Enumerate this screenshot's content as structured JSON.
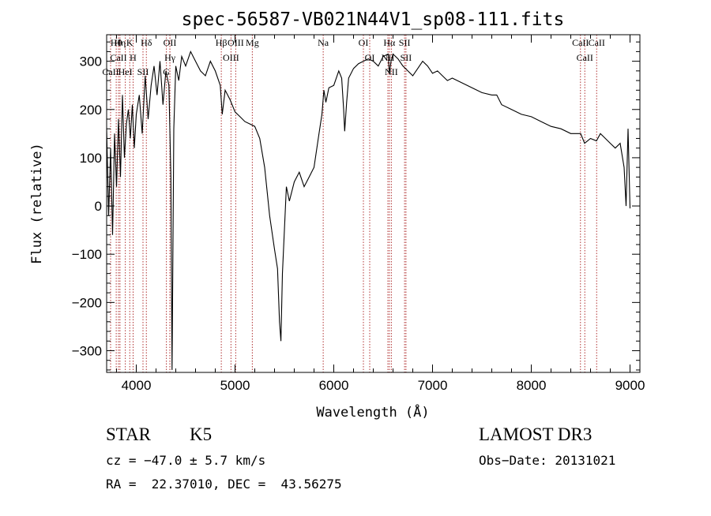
{
  "chart_data": {
    "type": "line",
    "title": "spec-56587-VB021N44V1_sp08-111.fits",
    "xlabel": "Wavelength (Å)",
    "ylabel": "Flux (relative)",
    "xlim": [
      3700,
      9100
    ],
    "ylim": [
      -345,
      355
    ],
    "x_ticks": [
      4000,
      5000,
      6000,
      7000,
      8000,
      9000
    ],
    "x_tick_labels": [
      "4000",
      "5000",
      "6000",
      "7000",
      "8000",
      "9000"
    ],
    "y_ticks": [
      -300,
      -200,
      -100,
      0,
      100,
      200,
      300
    ],
    "y_tick_labels": [
      "−300",
      "−200",
      "−100",
      "0",
      "100",
      "200",
      "300"
    ],
    "spectrum_color": "#000000",
    "line_color": "#b03030",
    "series": [
      {
        "name": "flux",
        "x": [
          3700,
          3720,
          3740,
          3760,
          3780,
          3800,
          3820,
          3840,
          3860,
          3880,
          3900,
          3920,
          3940,
          3960,
          3980,
          4000,
          4030,
          4060,
          4090,
          4120,
          4150,
          4180,
          4210,
          4240,
          4270,
          4300,
          4330,
          4350,
          4362,
          4380,
          4400,
          4430,
          4460,
          4500,
          4550,
          4600,
          4650,
          4700,
          4750,
          4800,
          4850,
          4870,
          4900,
          4950,
          5000,
          5050,
          5100,
          5150,
          5200,
          5250,
          5300,
          5350,
          5400,
          5430,
          5450,
          5465,
          5480,
          5500,
          5520,
          5550,
          5600,
          5650,
          5700,
          5750,
          5800,
          5850,
          5880,
          5900,
          5920,
          5950,
          6000,
          6050,
          6080,
          6100,
          6110,
          6130,
          6150,
          6200,
          6250,
          6300,
          6350,
          6400,
          6450,
          6500,
          6550,
          6563,
          6580,
          6600,
          6650,
          6700,
          6750,
          6800,
          6850,
          6900,
          6950,
          7000,
          7050,
          7100,
          7150,
          7200,
          7300,
          7400,
          7500,
          7600,
          7650,
          7700,
          7800,
          7900,
          8000,
          8100,
          8200,
          8300,
          8400,
          8500,
          8540,
          8600,
          8660,
          8700,
          8750,
          8800,
          8850,
          8900,
          8940,
          8960,
          8980,
          9000
        ],
        "y": [
          160,
          -20,
          120,
          -60,
          150,
          40,
          180,
          60,
          230,
          100,
          170,
          200,
          140,
          210,
          120,
          190,
          230,
          150,
          270,
          180,
          250,
          290,
          230,
          300,
          210,
          280,
          250,
          60,
          -340,
          160,
          290,
          260,
          310,
          290,
          320,
          300,
          280,
          270,
          300,
          280,
          250,
          190,
          240,
          220,
          195,
          185,
          175,
          170,
          165,
          140,
          80,
          -20,
          -90,
          -130,
          -240,
          -280,
          -140,
          -50,
          40,
          10,
          50,
          70,
          40,
          60,
          80,
          150,
          190,
          240,
          215,
          245,
          250,
          280,
          265,
          200,
          155,
          215,
          265,
          285,
          295,
          300,
          305,
          300,
          290,
          310,
          315,
          275,
          300,
          315,
          305,
          290,
          280,
          270,
          285,
          300,
          290,
          275,
          280,
          270,
          260,
          265,
          255,
          245,
          235,
          230,
          230,
          210,
          200,
          190,
          185,
          175,
          165,
          160,
          150,
          150,
          130,
          140,
          135,
          150,
          140,
          130,
          120,
          130,
          80,
          0,
          160,
          -5
        ]
      }
    ],
    "lines": [
      {
        "label": "Hθ",
        "x": 3797
      },
      {
        "label": "CaII",
        "x": 3820
      },
      {
        "label": "CaII",
        "x": 3740
      },
      {
        "label": "K",
        "x": 3934
      },
      {
        "label": "H",
        "x": 3968
      },
      {
        "label": "HeI",
        "x": 3889
      },
      {
        "label": "Hη",
        "x": 3835
      },
      {
        "label": "Hδ",
        "x": 4102
      },
      {
        "label": "SII",
        "x": 4068
      },
      {
        "label": "OII",
        "x": 4340
      },
      {
        "label": "Hγ",
        "x": 4341
      },
      {
        "label": "G",
        "x": 4305
      },
      {
        "label": "Hβ",
        "x": 4861
      },
      {
        "label": "OIII",
        "x": 4959
      },
      {
        "label": "OIII",
        "x": 5007
      },
      {
        "label": "Mg",
        "x": 5175
      },
      {
        "label": "Na",
        "x": 5893
      },
      {
        "label": "OI",
        "x": 6300
      },
      {
        "label": "OI",
        "x": 6364
      },
      {
        "label": "Hα",
        "x": 6563
      },
      {
        "label": "NII",
        "x": 6548
      },
      {
        "label": "NII",
        "x": 6583
      },
      {
        "label": "SII",
        "x": 6717
      },
      {
        "label": "SII",
        "x": 6731
      },
      {
        "label": "CaII",
        "x": 8498
      },
      {
        "label": "CaII",
        "x": 8542
      },
      {
        "label": "CaII",
        "x": 8662
      }
    ]
  },
  "info": {
    "object_class": "STAR",
    "subclass": "K5",
    "survey": "LAMOST DR3",
    "cz": "cz = −47.0 ± 5.7 km/s",
    "obs_date": "Obs−Date: 20131021",
    "coords": "RA =  22.37010, DEC =  43.56275"
  }
}
